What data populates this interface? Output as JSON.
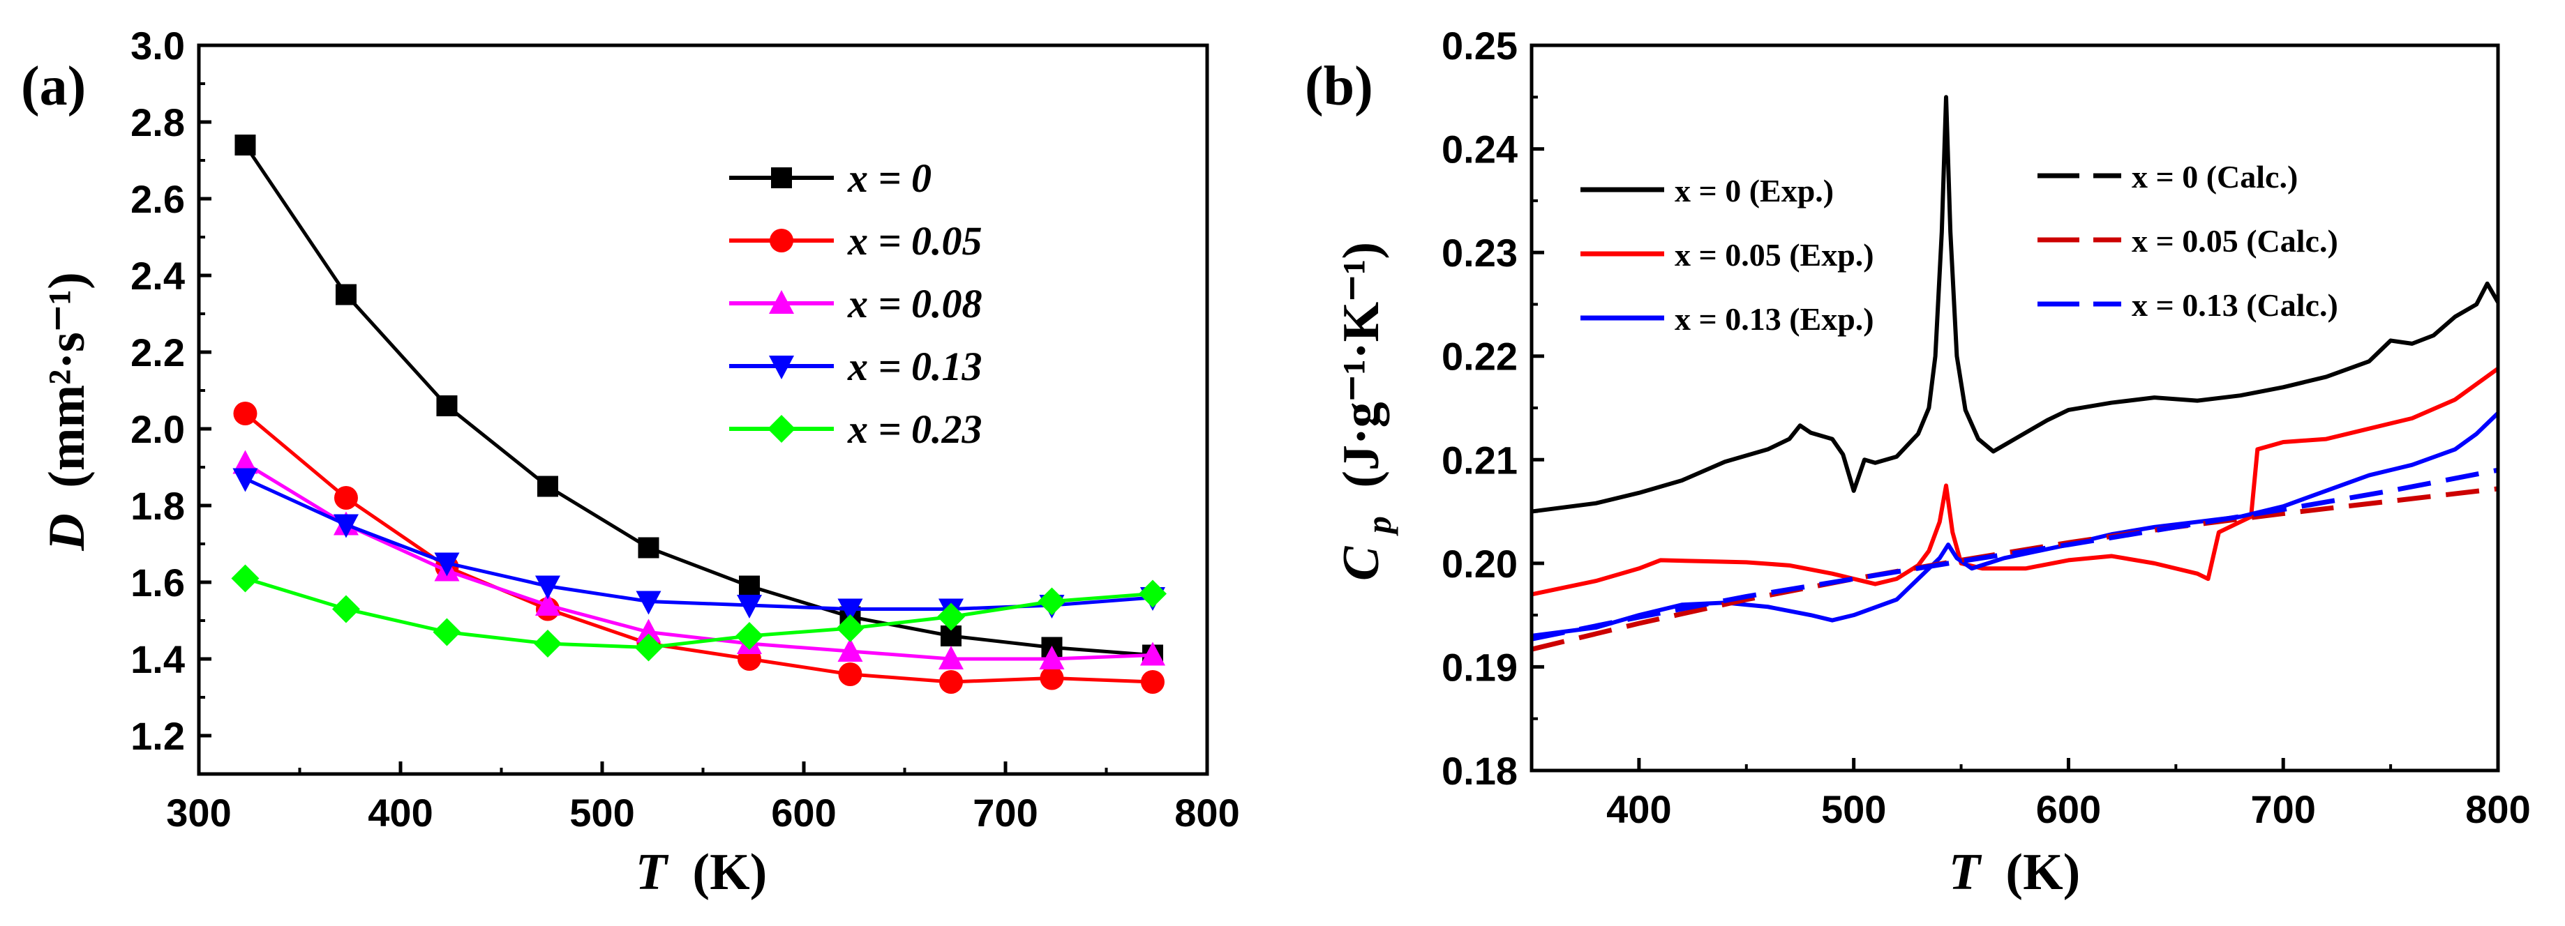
{
  "chart_data": [
    {
      "panel": "(a)",
      "type": "line",
      "xlabel": "T",
      "xunit": "(K)",
      "ylabel": "D",
      "yunit": "(mm²·s⁻¹)",
      "xlim": [
        300,
        800
      ],
      "ylim": [
        1.1,
        3.0
      ],
      "xticks": [
        300,
        400,
        500,
        600,
        700,
        800
      ],
      "yticks": [
        1.2,
        1.4,
        1.6,
        1.8,
        2.0,
        2.2,
        2.4,
        2.6,
        2.8,
        3.0
      ],
      "grid": false,
      "legend_position": "upper-right",
      "x": [
        323,
        373,
        423,
        473,
        523,
        573,
        623,
        673,
        723,
        773
      ],
      "series": [
        {
          "name": "x = 0",
          "color": "#000000",
          "marker": "square",
          "values": [
            2.74,
            2.35,
            2.06,
            1.85,
            1.69,
            1.59,
            1.51,
            1.46,
            1.43,
            1.41
          ]
        },
        {
          "name": "x = 0.05",
          "color": "#ff0000",
          "marker": "circle",
          "values": [
            2.04,
            1.82,
            1.64,
            1.53,
            1.44,
            1.4,
            1.36,
            1.34,
            1.35,
            1.34
          ]
        },
        {
          "name": "x = 0.08",
          "color": "#ff00ff",
          "marker": "triangle-up",
          "values": [
            1.91,
            1.75,
            1.63,
            1.54,
            1.47,
            1.44,
            1.42,
            1.4,
            1.4,
            1.41
          ]
        },
        {
          "name": "x = 0.13",
          "color": "#0000ff",
          "marker": "triangle-down",
          "values": [
            1.87,
            1.75,
            1.65,
            1.59,
            1.55,
            1.54,
            1.53,
            1.53,
            1.54,
            1.56
          ]
        },
        {
          "name": "x = 0.23",
          "color": "#00ff00",
          "marker": "diamond",
          "values": [
            1.61,
            1.53,
            1.47,
            1.44,
            1.43,
            1.46,
            1.48,
            1.51,
            1.55,
            1.57
          ]
        }
      ]
    },
    {
      "panel": "(b)",
      "type": "line",
      "xlabel": "T",
      "xunit": "(K)",
      "ylabel": "C",
      "ylabel_sub": "p",
      "yunit": "(J·g⁻¹·K⁻¹)",
      "xlim": [
        350,
        800
      ],
      "ylim": [
        0.18,
        0.25
      ],
      "xticks": [
        400,
        500,
        600,
        700,
        800
      ],
      "yticks": [
        0.18,
        0.19,
        0.2,
        0.21,
        0.22,
        0.23,
        0.24,
        0.25
      ],
      "grid": false,
      "legend_position": "upper-left and upper-right",
      "series": [
        {
          "name": "x = 0 (Exp.)",
          "color": "#000000",
          "dash": "solid",
          "x": [
            350,
            380,
            400,
            420,
            440,
            460,
            470,
            475,
            480,
            490,
            495,
            500,
            505,
            510,
            520,
            530,
            535,
            538,
            541,
            543,
            545,
            548,
            552,
            558,
            565,
            575,
            590,
            600,
            620,
            640,
            660,
            680,
            700,
            720,
            740,
            750,
            760,
            770,
            780,
            790,
            795,
            800
          ],
          "values": [
            0.205,
            0.2058,
            0.2068,
            0.208,
            0.2098,
            0.211,
            0.212,
            0.2133,
            0.2126,
            0.212,
            0.2105,
            0.207,
            0.21,
            0.2097,
            0.2103,
            0.2125,
            0.215,
            0.22,
            0.232,
            0.245,
            0.232,
            0.22,
            0.2148,
            0.212,
            0.2108,
            0.212,
            0.2138,
            0.2148,
            0.2155,
            0.216,
            0.2157,
            0.2162,
            0.217,
            0.218,
            0.2195,
            0.2215,
            0.2212,
            0.222,
            0.2238,
            0.225,
            0.227,
            0.2252
          ]
        },
        {
          "name": "x = 0.05 (Exp.)",
          "color": "#ff0000",
          "dash": "solid",
          "x": [
            350,
            380,
            400,
            410,
            430,
            450,
            470,
            490,
            500,
            510,
            520,
            530,
            535,
            540,
            543,
            546,
            550,
            560,
            580,
            600,
            620,
            640,
            660,
            665,
            670,
            680,
            685,
            688,
            700,
            720,
            740,
            760,
            780,
            800
          ],
          "values": [
            0.197,
            0.1983,
            0.1995,
            0.2003,
            0.2002,
            0.2001,
            0.1998,
            0.199,
            0.1985,
            0.198,
            0.1985,
            0.1998,
            0.2012,
            0.204,
            0.2075,
            0.203,
            0.2,
            0.1995,
            0.1995,
            0.2003,
            0.2007,
            0.2,
            0.199,
            0.1985,
            0.203,
            0.204,
            0.2045,
            0.211,
            0.2117,
            0.212,
            0.213,
            0.214,
            0.2158,
            0.2188
          ]
        },
        {
          "name": "x = 0.13 (Exp.)",
          "color": "#0000ff",
          "dash": "solid",
          "x": [
            350,
            380,
            400,
            420,
            440,
            460,
            480,
            490,
            500,
            520,
            530,
            540,
            544,
            548,
            555,
            570,
            600,
            620,
            640,
            660,
            680,
            700,
            720,
            740,
            760,
            780,
            790,
            800
          ],
          "values": [
            0.193,
            0.1938,
            0.195,
            0.196,
            0.1962,
            0.1958,
            0.195,
            0.1945,
            0.195,
            0.1965,
            0.1985,
            0.2005,
            0.2018,
            0.2005,
            0.1995,
            0.2005,
            0.2018,
            0.2028,
            0.2035,
            0.204,
            0.2045,
            0.2055,
            0.207,
            0.2085,
            0.2095,
            0.211,
            0.2125,
            0.2145
          ]
        },
        {
          "name": "x = 0 (Calc.)",
          "color": "#000000",
          "dash": "dashed",
          "x": [],
          "values": []
        },
        {
          "name": "x = 0.05 (Calc.)",
          "color": "#cc0000",
          "dash": "dashed",
          "x": [
            350,
            400,
            450,
            500,
            550,
            600,
            650,
            700,
            750,
            800
          ],
          "values": [
            0.1917,
            0.1942,
            0.1965,
            0.1985,
            0.2003,
            0.202,
            0.2035,
            0.2048,
            0.206,
            0.2072
          ]
        },
        {
          "name": "x = 0.13 (Calc.)",
          "color": "#0000ff",
          "dash": "dashed",
          "x": [
            350,
            400,
            450,
            500,
            550,
            600,
            650,
            700,
            750,
            800
          ],
          "values": [
            0.1927,
            0.1948,
            0.1968,
            0.1985,
            0.2002,
            0.2018,
            0.2035,
            0.2052,
            0.207,
            0.209
          ]
        }
      ]
    }
  ]
}
